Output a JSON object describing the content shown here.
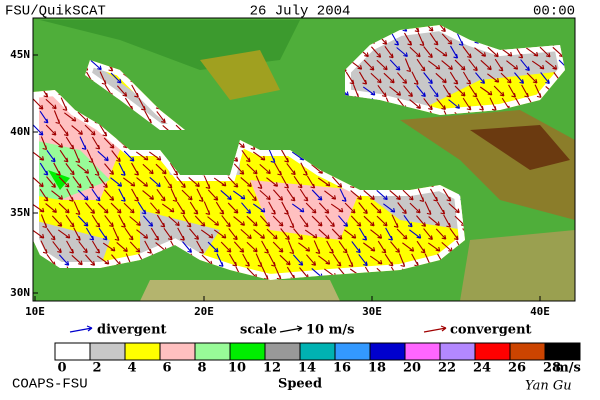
{
  "header": {
    "left": "FSU/QuikSCAT",
    "center": "26 July 2004",
    "right": "00:00"
  },
  "map": {
    "lat_labels": [
      "45N",
      "40N",
      "35N",
      "30N"
    ],
    "lon_labels": [
      "10E",
      "20E",
      "30E",
      "40E"
    ]
  },
  "legend": {
    "divergent": "divergent",
    "scale": "scale",
    "scale_value": "10 m/s",
    "convergent": "convergent"
  },
  "colorbar": {
    "colors": [
      "#ffffff",
      "#c8c8c8",
      "#ffff00",
      "#ffc0c0",
      "#98fb98",
      "#00ee00",
      "#999999",
      "#00b2b2",
      "#3399ff",
      "#0000cd",
      "#ff66ff",
      "#b388ff",
      "#ff0000",
      "#cc4400",
      "#000000"
    ],
    "labels": [
      "0",
      "2",
      "4",
      "6",
      "8",
      "10",
      "12",
      "14",
      "16",
      "18",
      "20",
      "22",
      "24",
      "26",
      "28"
    ],
    "unit": "m/s",
    "title": "Speed"
  },
  "footer": {
    "left": "COAPS-FSU",
    "right": "Yan Gu"
  }
}
